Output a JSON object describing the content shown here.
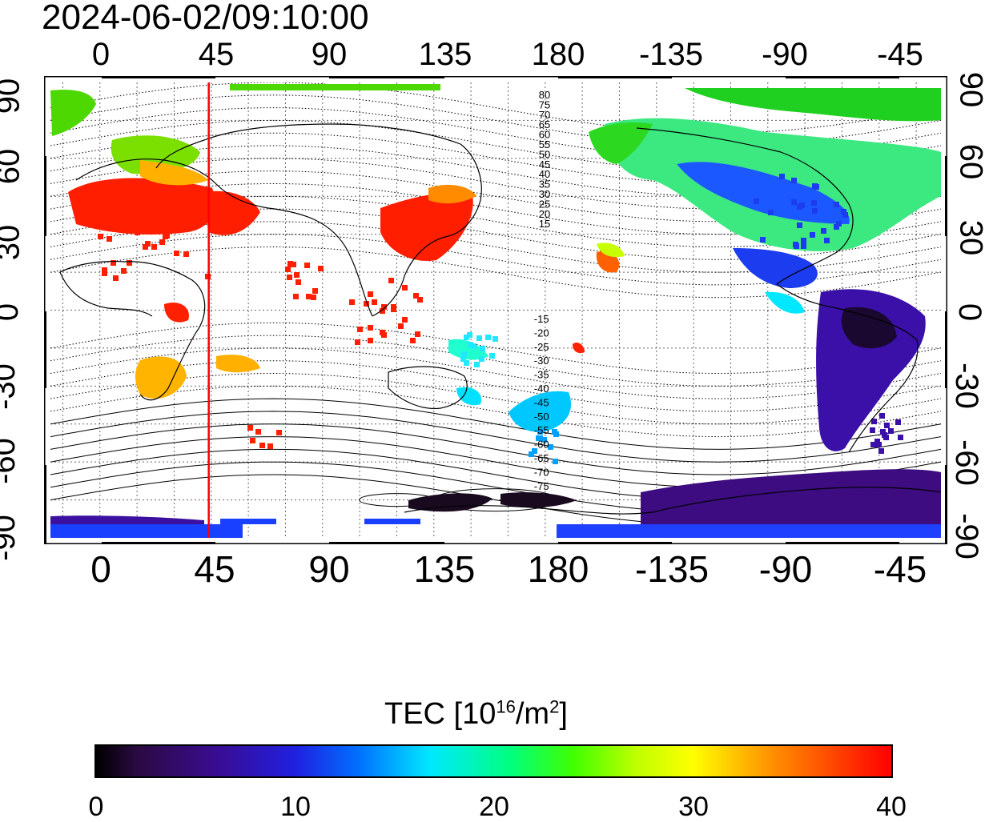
{
  "title": "2024-06-02/09:10:00",
  "x_ticks_top": [
    "0",
    "45",
    "90",
    "135",
    "180",
    "-135",
    "-90",
    "-45"
  ],
  "x_ticks_bottom": [
    "0",
    "45",
    "90",
    "135",
    "180",
    "-135",
    "-90",
    "-45"
  ],
  "y_ticks_left": [
    "90",
    "60",
    "30",
    "0",
    "-30",
    "-60",
    "-90"
  ],
  "y_ticks_right": [
    "90",
    "60",
    "30",
    "0",
    "-30",
    "-60",
    "-90"
  ],
  "contour_labels_north": [
    "80",
    "75",
    "70",
    "65",
    "60",
    "55",
    "50",
    "45",
    "40",
    "35",
    "30",
    "25",
    "20",
    "15"
  ],
  "contour_labels_south": [
    "-15",
    "-20",
    "-25",
    "-30",
    "-35",
    "-40",
    "-45",
    "-50",
    "-55",
    "-60",
    "-65",
    "-70",
    "-75"
  ],
  "colorbar": {
    "label_prefix": "TEC  [10",
    "label_exp1": "16",
    "label_mid": "/m",
    "label_exp2": "2",
    "label_suffix": "]",
    "ticks": [
      "0",
      "10",
      "20",
      "30",
      "40"
    ],
    "range": [
      0,
      40
    ]
  },
  "map": {
    "lon_range": [
      -20,
      340
    ],
    "lat_range": [
      -90,
      90
    ],
    "marker_longitude": 44,
    "marker_color": "#ff0000"
  }
}
